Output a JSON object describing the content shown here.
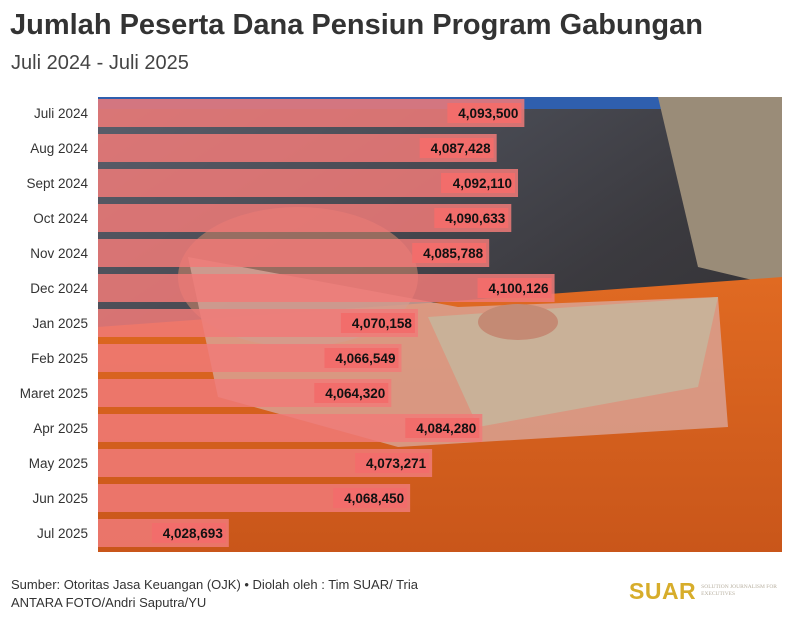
{
  "header": {
    "title": "Jumlah Peserta Dana Pensiun Program Gabungan",
    "subtitle": "Juli 2024 - Juli 2025"
  },
  "footer": {
    "source_line": "Sumber: Otoritas Jasa Keuangan (OJK) • Diolah oleh : Tim SUAR/ Tria",
    "photo_credit": "ANTARA FOTO/Andri Saputra/YU"
  },
  "logo": {
    "word": "SUAR",
    "tagline": "SOLUTION JOURNALISM FOR EXECUTIVES"
  },
  "colors": {
    "bar": "#f07a78",
    "bar_label_bg": "#f26d6b",
    "title": "#333333",
    "logo": "#d7ad2b"
  },
  "chart_data": {
    "type": "bar",
    "orientation": "horizontal",
    "title": "Jumlah Peserta Dana Pensiun Program Gabungan",
    "subtitle": "Juli 2024 - Juli 2025",
    "categories": [
      "Juli 2024",
      "Aug 2024",
      "Sept 2024",
      "Oct 2024",
      "Nov 2024",
      "Dec 2024",
      "Jan 2025",
      "Feb 2025",
      "Maret 2025",
      "Apr 2025",
      "May 2025",
      "Jun 2025",
      "Jul 2025"
    ],
    "values": [
      4093500,
      4087428,
      4092110,
      4090633,
      4085788,
      4100126,
      4070158,
      4066549,
      4064320,
      4084280,
      4073271,
      4068450,
      4028693
    ],
    "value_labels": [
      "4,093,500",
      "4,087,428",
      "4,092,110",
      "4,090,633",
      "4,085,788",
      "4,100,126",
      "4,070,158",
      "4,066,549",
      "4,064,320",
      "4,084,280",
      "4,073,271",
      "4,068,450",
      "4,028,693"
    ],
    "xlim": [
      4000000,
      4150000
    ],
    "grid": false,
    "legend": "none"
  }
}
